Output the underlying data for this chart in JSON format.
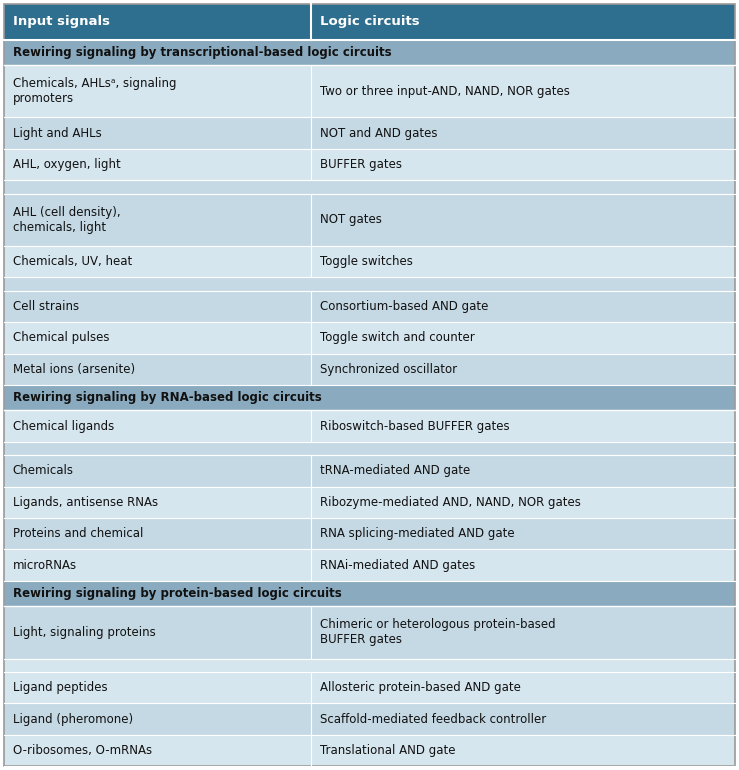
{
  "header": [
    "Input signals",
    "Logic circuits"
  ],
  "header_bg": "#2e6e8e",
  "header_text_color": "#ffffff",
  "section_bg": "#8aabbf",
  "section_text_color": "#1a1a1a",
  "row_bg_light": "#d6e6ef",
  "row_bg_dark": "#c5d9e5",
  "border_color": "#ffffff",
  "col_split": 0.42,
  "sections": [
    {
      "title": "Rewiring signaling by transcriptional-based logic circuits",
      "rows": [
        [
          "Chemicals, AHLsᵃ, signaling\npromoters",
          "Two or three input-AND, NAND, NOR gates"
        ],
        [
          "Light and AHLs",
          "NOT and AND gates"
        ],
        [
          "AHL, oxygen, light",
          "BUFFER gates"
        ],
        [
          "",
          ""
        ],
        [
          "AHL (cell density),\nchemicals, light",
          "NOT gates"
        ],
        [
          "Chemicals, UV, heat",
          "Toggle switches"
        ],
        [
          "",
          ""
        ],
        [
          "Cell strains",
          "Consortium-based AND gate"
        ],
        [
          "Chemical pulses",
          "Toggle switch and counter"
        ],
        [
          "Metal ions (arsenite)",
          "Synchronized oscillator"
        ]
      ]
    },
    {
      "title": "Rewiring signaling by RNA-based logic circuits",
      "rows": [
        [
          "Chemical ligands",
          "Riboswitch-based BUFFER gates"
        ],
        [
          "",
          ""
        ],
        [
          "Chemicals",
          "tRNA-mediated AND gate"
        ],
        [
          "Ligands, antisense RNAs",
          "Ribozyme-mediated AND, NAND, NOR gates"
        ],
        [
          "Proteins and chemical",
          "RNA splicing-mediated AND gate"
        ],
        [
          "microRNAs",
          "RNAi-mediated AND gates"
        ]
      ]
    },
    {
      "title": "Rewiring signaling by protein-based logic circuits",
      "rows": [
        [
          "Light, signaling proteins",
          "Chimeric or heterologous protein-based\nBUFFER gates"
        ],
        [
          "",
          ""
        ],
        [
          "Ligand peptides",
          "Allosteric protein-based AND gate"
        ],
        [
          "Ligand (pheromone)",
          "Scaffold-mediated feedback controller"
        ],
        [
          "O-ribosomes, O-mRNAs",
          "Translational AND gate"
        ]
      ]
    }
  ]
}
